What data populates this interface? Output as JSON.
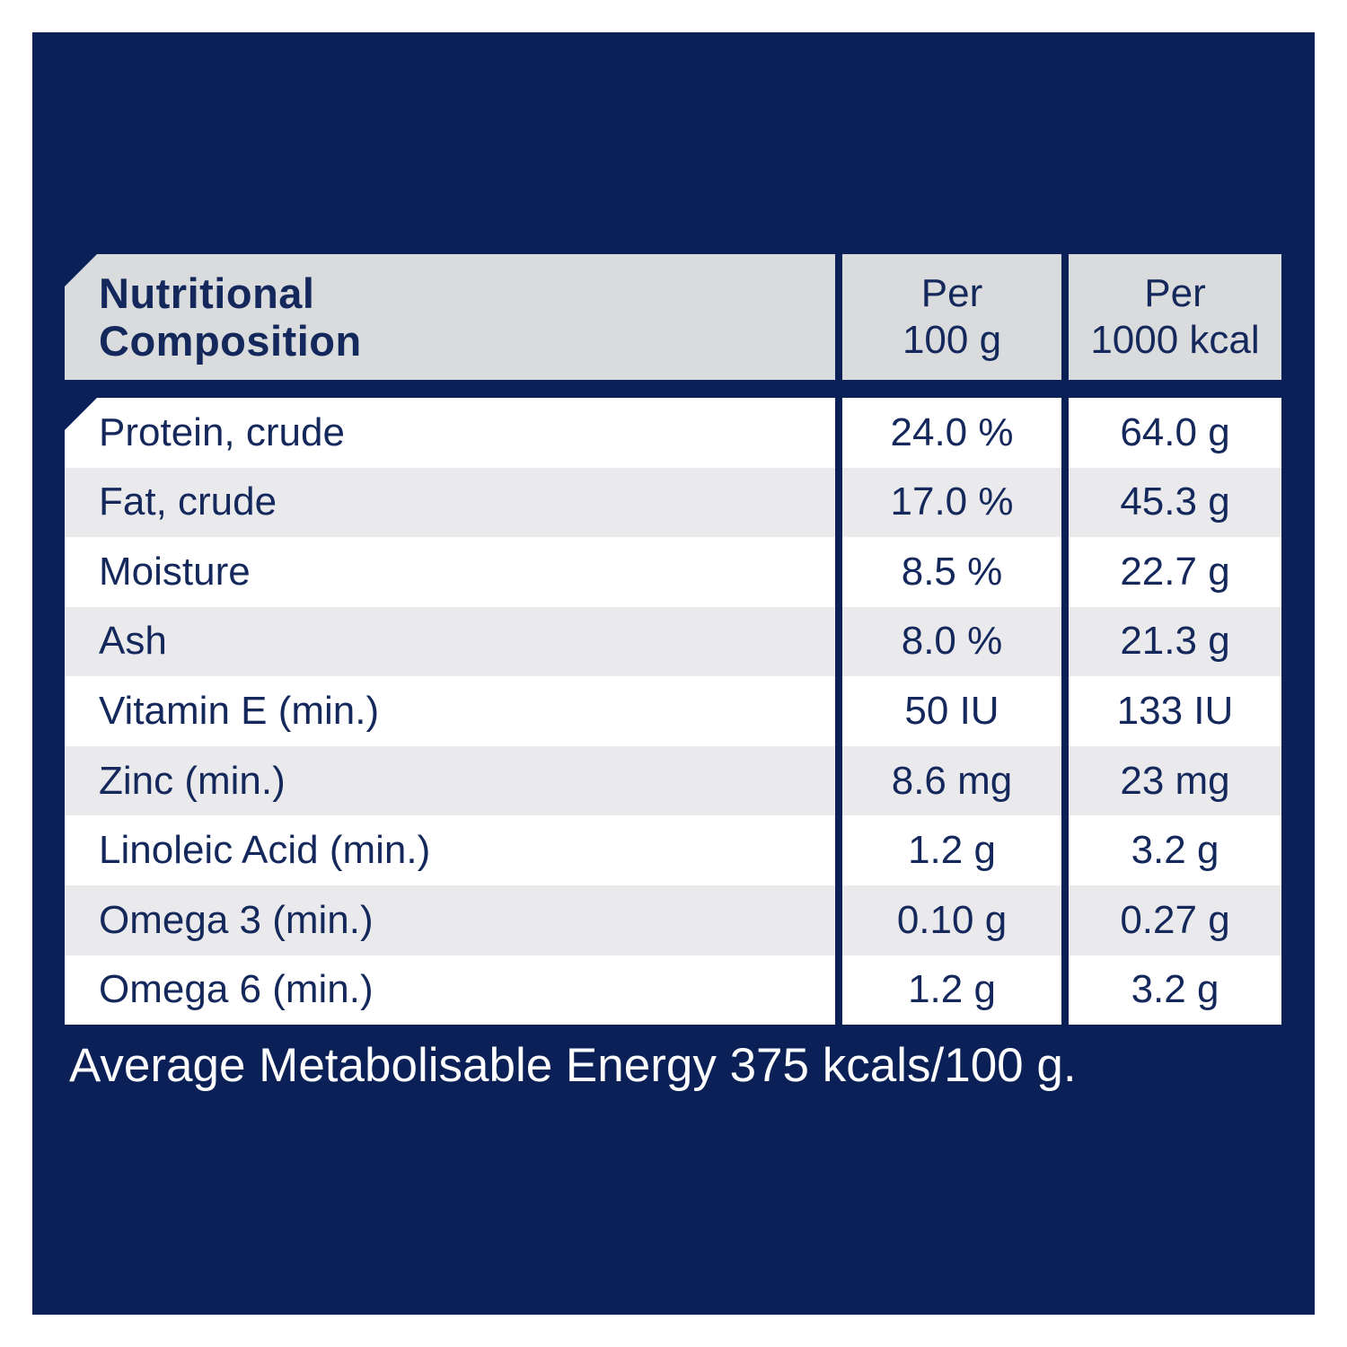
{
  "table": {
    "header": {
      "title_line1": "Nutritional",
      "title_line2": "Composition",
      "col_per_100g_line1": "Per",
      "col_per_100g_line2": "100 g",
      "col_per_1000kcal_line1": "Per",
      "col_per_1000kcal_line2": "1000 kcal"
    },
    "rows": [
      {
        "label": "Protein, crude",
        "per_100g": "24.0 %",
        "per_1000kcal": "64.0 g"
      },
      {
        "label": "Fat, crude",
        "per_100g": "17.0 %",
        "per_1000kcal": "45.3 g"
      },
      {
        "label": "Moisture",
        "per_100g": "8.5 %",
        "per_1000kcal": "22.7 g"
      },
      {
        "label": "Ash",
        "per_100g": "8.0 %",
        "per_1000kcal": "21.3 g"
      },
      {
        "label": "Vitamin E (min.)",
        "per_100g": "50 IU",
        "per_1000kcal": "133 IU"
      },
      {
        "label": "Zinc (min.)",
        "per_100g": "8.6 mg",
        "per_1000kcal": "23 mg"
      },
      {
        "label": "Linoleic Acid (min.)",
        "per_100g": "1.2 g",
        "per_1000kcal": "3.2 g"
      },
      {
        "label": "Omega 3 (min.)",
        "per_100g": "0.10 g",
        "per_1000kcal": "0.27 g"
      },
      {
        "label": "Omega 6 (min.)",
        "per_100g": "1.2 g",
        "per_1000kcal": "3.2 g"
      }
    ],
    "footer": "Average Metabolisable Energy 375 kcals/100 g."
  },
  "colors": {
    "panel_navy": "#0a2057",
    "header_gray": "#dadbdd",
    "row_alt_gray": "#eaeaed",
    "row_white": "#ffffff",
    "text_navy": "#14285c",
    "footer_text": "#ffffff"
  }
}
